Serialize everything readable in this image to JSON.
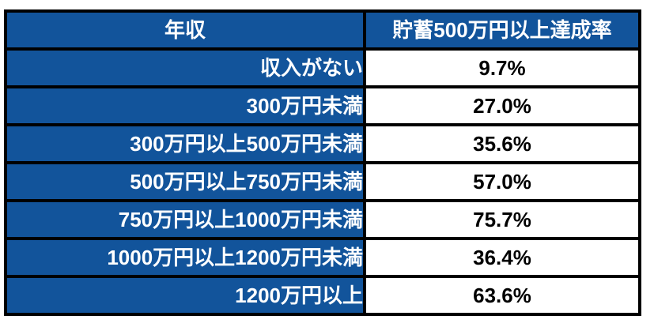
{
  "chart_data": {
    "type": "table",
    "columns": [
      "年収",
      "貯蓄500万円以上達成率"
    ],
    "rows": [
      [
        "収入がない",
        "9.7%"
      ],
      [
        "300万円未満",
        "27.0%"
      ],
      [
        "300万円以上500万円未満",
        "35.6%"
      ],
      [
        "500万円以上750万円未満",
        "57.0%"
      ],
      [
        "750万円以上1000万円未満",
        "75.7%"
      ],
      [
        "1000万円以上1200万円未満",
        "36.4%"
      ],
      [
        "1200万円以上",
        "63.6%"
      ]
    ],
    "values_numeric": [
      9.7,
      27.0,
      35.6,
      57.0,
      75.7,
      36.4,
      63.6
    ],
    "legend_position": "none",
    "grid": "black-cell-borders"
  },
  "colors": {
    "header_bg": "#12549B",
    "income_cell_bg": "#12549B",
    "rate_cell_bg": "#FFFFFF",
    "border": "#000000",
    "header_text": "#FFFFFF",
    "income_text": "#FFFFFF",
    "rate_text": "#000000",
    "page_bg": "#FFFFFF"
  }
}
